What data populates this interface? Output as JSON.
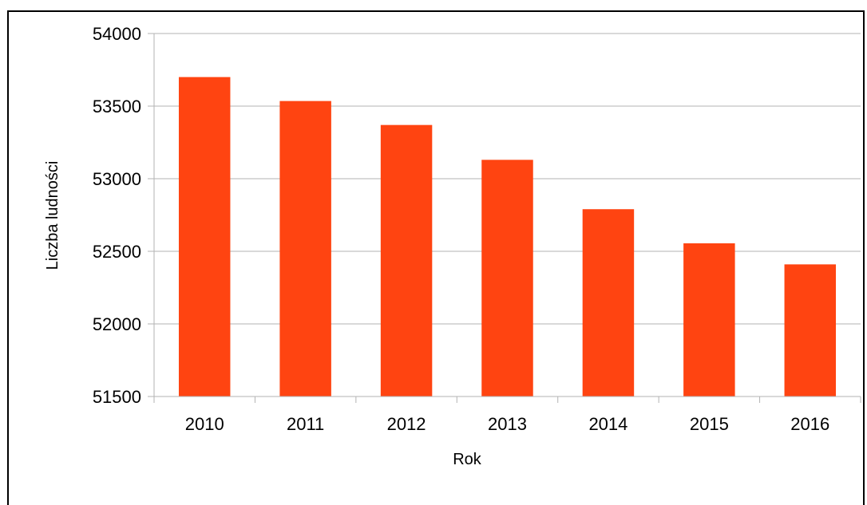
{
  "chart_data": {
    "type": "bar",
    "categories": [
      "2010",
      "2011",
      "2012",
      "2013",
      "2014",
      "2015",
      "2016"
    ],
    "values": [
      53700,
      53535,
      53370,
      53130,
      52790,
      52555,
      52410
    ],
    "xlabel": "Rok",
    "ylabel": "Liczba ludności",
    "ylim": [
      51500,
      54000
    ],
    "yticks": [
      51500,
      52000,
      52500,
      53000,
      53500,
      54000
    ],
    "grid": true,
    "legend": "none",
    "bar_color": "#ff4411",
    "grid_color": "#b3b3b3"
  }
}
